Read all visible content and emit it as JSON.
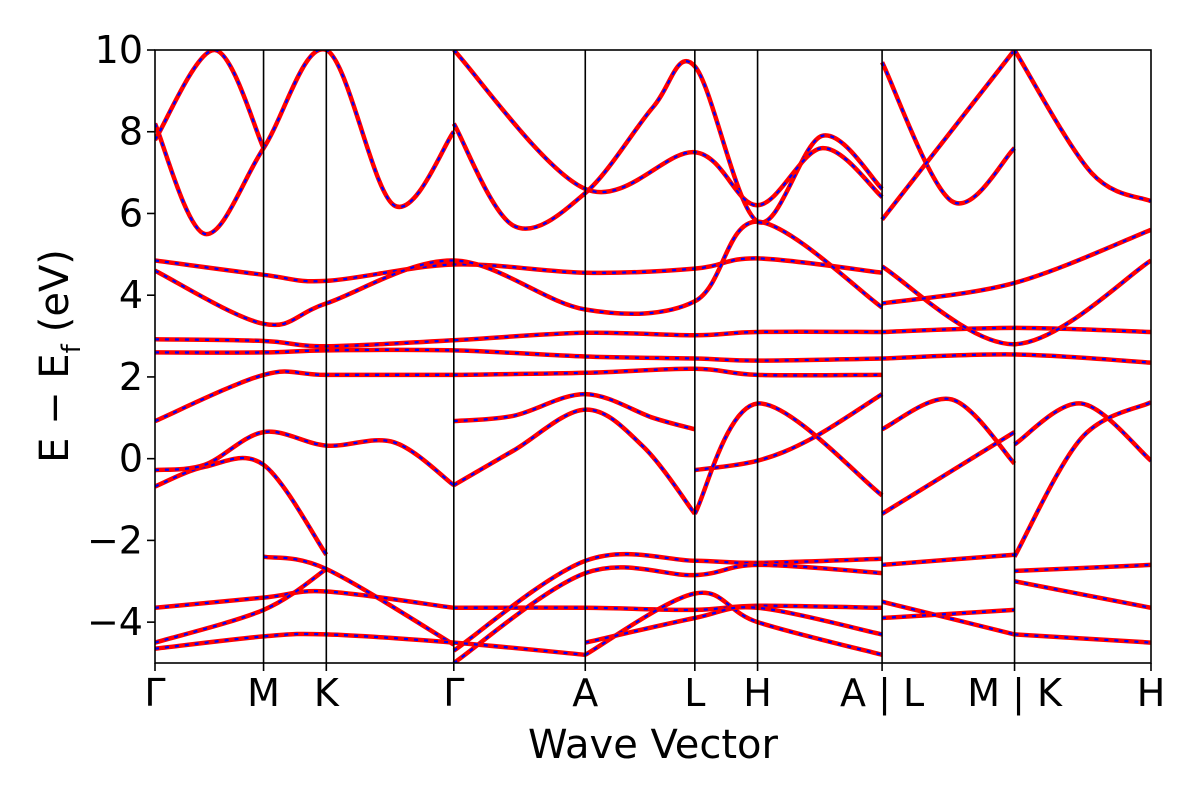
{
  "chart_data": {
    "type": "line",
    "xlabel": "Wave Vector",
    "ylabel_main": "E − E",
    "ylabel_sub": "f",
    "ylabel_unit": "(eV)",
    "ylim": [
      -5,
      10
    ],
    "yticks": [
      -4,
      -2,
      0,
      2,
      4,
      6,
      8,
      10
    ],
    "ytick_labels": [
      "−4",
      "−2",
      "0",
      "2",
      "4",
      "6",
      "8",
      "10"
    ],
    "x_range": [
      0,
      10
    ],
    "kpoint_positions": [
      0,
      1.09,
      1.72,
      3.0,
      4.32,
      5.42,
      6.05,
      7.3,
      8.63,
      10.0
    ],
    "kpoint_labels": [
      "Γ",
      "M",
      "K",
      "Γ",
      "A",
      "L",
      "H",
      "A | L",
      "M | K",
      "H"
    ],
    "colors": {
      "series_a": "#ff0000",
      "series_b": "#0000ff"
    },
    "line_styles": {
      "series_a": "solid",
      "series_b": "dashed"
    },
    "series": [
      {
        "bands": [
          {
            "x": [
              0,
              0.5,
              1.09,
              1.72
            ],
            "y": [
              -0.68,
              -0.2,
              -0.15,
              -2.35
            ]
          },
          {
            "x": [
              0,
              0.5,
              1.09,
              1.72,
              2.4,
              3.0
            ],
            "y": [
              -0.28,
              -0.15,
              0.65,
              0.32,
              0.4,
              -0.65
            ]
          },
          {
            "x": [
              3.0,
              3.6,
              4.32,
              4.9,
              5.42
            ],
            "y": [
              -0.65,
              0.2,
              1.2,
              0.3,
              -1.35
            ]
          },
          {
            "x": [
              3.0,
              3.6,
              4.32,
              5.0,
              5.42
            ],
            "y": [
              0.92,
              1.05,
              1.58,
              1.0,
              0.72
            ]
          },
          {
            "x": [
              5.42,
              6.05,
              6.6,
              7.3
            ],
            "y": [
              -0.28,
              -0.05,
              0.5,
              1.58
            ]
          },
          {
            "x": [
              5.42,
              6.05,
              7.3
            ],
            "y": [
              -1.35,
              1.35,
              -0.9
            ]
          },
          {
            "x": [
              7.3,
              8.0,
              8.63
            ],
            "y": [
              0.72,
              1.45,
              -0.12
            ]
          },
          {
            "x": [
              7.3,
              8.63
            ],
            "y": [
              -1.35,
              0.65
            ]
          },
          {
            "x": [
              8.63,
              9.3,
              10.0
            ],
            "y": [
              0.35,
              1.35,
              -0.05
            ]
          },
          {
            "x": [
              8.63,
              9.3,
              10.0
            ],
            "y": [
              -2.4,
              0.5,
              1.38
            ]
          },
          {
            "x": [
              0,
              1.09,
              1.72,
              3.0
            ],
            "y": [
              0.92,
              2.05,
              2.05,
              2.05
            ]
          },
          {
            "x": [
              3.0,
              4.32,
              5.42,
              6.05,
              7.3
            ],
            "y": [
              2.05,
              2.1,
              2.2,
              2.05,
              2.05
            ]
          },
          {
            "x": [
              0,
              1.09,
              1.72,
              3.0,
              4.32,
              5.42,
              6.05,
              7.3
            ],
            "y": [
              2.6,
              2.6,
              2.65,
              2.65,
              2.5,
              2.45,
              2.4,
              2.45
            ]
          },
          {
            "x": [
              0,
              1.09,
              1.72,
              3.0,
              4.32,
              5.42,
              6.05,
              7.3
            ],
            "y": [
              2.92,
              2.88,
              2.75,
              2.9,
              3.08,
              3.02,
              3.1,
              3.1
            ]
          },
          {
            "x": [
              0,
              1.09,
              1.72,
              3.0,
              4.32,
              5.42,
              6.05,
              7.3
            ],
            "y": [
              4.85,
              4.5,
              4.35,
              4.75,
              4.55,
              4.65,
              4.9,
              4.55
            ]
          },
          {
            "x": [
              0,
              1.09,
              1.72,
              3.0,
              4.32,
              5.42,
              6.05,
              7.3
            ],
            "y": [
              4.6,
              3.3,
              3.8,
              4.85,
              3.65,
              3.85,
              5.8,
              3.7
            ]
          },
          {
            "x": [
              7.3,
              8.63,
              10.0
            ],
            "y": [
              2.45,
              2.55,
              2.35
            ]
          },
          {
            "x": [
              7.3,
              8.63,
              10.0
            ],
            "y": [
              3.1,
              3.2,
              3.1
            ]
          },
          {
            "x": [
              7.3,
              8.63,
              10.0
            ],
            "y": [
              4.7,
              2.8,
              4.85
            ]
          },
          {
            "x": [
              7.3,
              8.63,
              10.0
            ],
            "y": [
              3.8,
              4.3,
              5.6
            ]
          },
          {
            "x": [
              0,
              0.5,
              1.09,
              1.72,
              2.4,
              3.0
            ],
            "y": [
              8.2,
              5.5,
              7.6,
              10.0,
              6.2,
              8.0
            ]
          },
          {
            "x": [
              0,
              0.6,
              1.09
            ],
            "y": [
              7.8,
              10.0,
              7.6
            ]
          },
          {
            "x": [
              3.0,
              3.6,
              4.32,
              5.0,
              5.42,
              6.05,
              6.7,
              7.3
            ],
            "y": [
              8.2,
              5.7,
              6.5,
              8.6,
              9.6,
              5.8,
              7.9,
              6.6
            ]
          },
          {
            "x": [
              3.0,
              4.32,
              5.42,
              6.05,
              6.7,
              7.3
            ],
            "y": [
              10.0,
              6.6,
              7.5,
              6.2,
              7.6,
              6.4
            ]
          },
          {
            "x": [
              7.3,
              8.0,
              8.63
            ],
            "y": [
              9.7,
              6.3,
              7.6
            ]
          },
          {
            "x": [
              7.3,
              8.63
            ],
            "y": [
              5.85,
              10.0
            ]
          },
          {
            "x": [
              8.63,
              9.4,
              10.0
            ],
            "y": [
              10.0,
              7.0,
              6.3
            ]
          },
          {
            "x": [
              0,
              1.09,
              1.72,
              3.0
            ],
            "y": [
              -3.65,
              -3.4,
              -3.25,
              -3.65
            ]
          },
          {
            "x": [
              3.0,
              4.32,
              5.42,
              6.05,
              7.3
            ],
            "y": [
              -3.65,
              -3.65,
              -3.7,
              -3.6,
              -3.65
            ]
          },
          {
            "x": [
              0,
              1.09,
              1.72
            ],
            "y": [
              -4.5,
              -3.7,
              -2.7
            ]
          },
          {
            "x": [
              1.09,
              1.72,
              3.0
            ],
            "y": [
              -2.4,
              -2.7,
              -4.55
            ]
          },
          {
            "x": [
              3.0,
              4.32,
              5.42,
              6.05,
              7.3
            ],
            "y": [
              -4.7,
              -2.5,
              -2.5,
              -2.55,
              -2.45
            ]
          },
          {
            "x": [
              3.0,
              4.32,
              5.42,
              6.05,
              7.3
            ],
            "y": [
              -5.0,
              -2.8,
              -2.85,
              -2.6,
              -2.8
            ]
          },
          {
            "x": [
              0,
              1.09,
              1.72,
              3.0,
              4.32
            ],
            "y": [
              -4.65,
              -4.35,
              -4.3,
              -4.5,
              -4.8
            ]
          },
          {
            "x": [
              4.32,
              5.42,
              6.05,
              7.3
            ],
            "y": [
              -4.8,
              -3.3,
              -4.0,
              -4.8
            ]
          },
          {
            "x": [
              4.32,
              5.42,
              6.05,
              7.3
            ],
            "y": [
              -4.5,
              -3.9,
              -3.65,
              -4.3
            ]
          },
          {
            "x": [
              7.3,
              8.63
            ],
            "y": [
              -2.6,
              -2.35
            ]
          },
          {
            "x": [
              7.3,
              8.63
            ],
            "y": [
              -3.5,
              -4.3
            ]
          },
          {
            "x": [
              7.3,
              8.63
            ],
            "y": [
              -3.9,
              -3.7
            ]
          },
          {
            "x": [
              8.63,
              10.0
            ],
            "y": [
              -2.75,
              -2.6
            ]
          },
          {
            "x": [
              8.63,
              10.0
            ],
            "y": [
              -3.0,
              -3.65
            ]
          },
          {
            "x": [
              8.63,
              10.0
            ],
            "y": [
              -4.3,
              -4.5
            ]
          }
        ]
      }
    ]
  }
}
